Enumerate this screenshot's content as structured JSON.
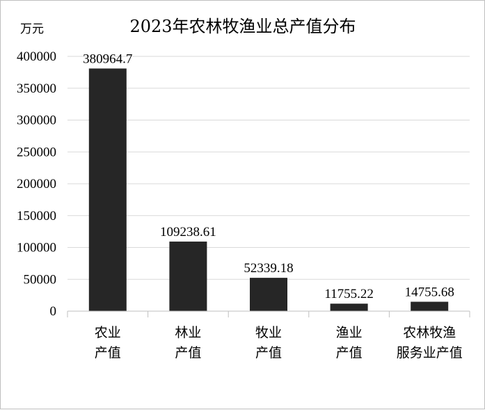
{
  "chart_data": {
    "type": "bar",
    "title": "2023年农林牧渔业总产值分布",
    "ylabel": "万元",
    "xlabel": "",
    "categories": [
      [
        "农业",
        "产值"
      ],
      [
        "林业",
        "产值"
      ],
      [
        "牧业",
        "产值"
      ],
      [
        "渔业",
        "产值"
      ],
      [
        "农林牧渔",
        "服务业产值"
      ]
    ],
    "values": [
      380964.7,
      109238.61,
      52339.18,
      11755.22,
      14755.68
    ],
    "value_labels": [
      "380964.7",
      "109238.61",
      "52339.18",
      "11755.22",
      "14755.68"
    ],
    "ylim": [
      0,
      400000
    ],
    "yticks": [
      0,
      50000,
      100000,
      150000,
      200000,
      250000,
      300000,
      350000,
      400000
    ],
    "grid": true,
    "legend": "none",
    "bar_color": "#262626",
    "grid_color": "#d9d9d9"
  }
}
